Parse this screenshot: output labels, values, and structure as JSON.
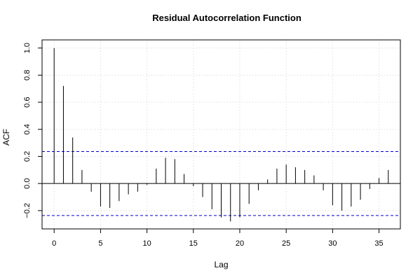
{
  "chart_data": {
    "type": "bar",
    "title": "Residual Autocorrelation Function",
    "xlabel": "Lag",
    "ylabel": "ACF",
    "xlim": [
      -1.3,
      37.3
    ],
    "ylim": [
      -0.335,
      1.06
    ],
    "x_ticks": [
      0,
      5,
      10,
      15,
      20,
      25,
      30,
      35
    ],
    "x_tick_labels": [
      "0",
      "5",
      "10",
      "15",
      "20",
      "25",
      "30",
      "35"
    ],
    "y_ticks": [
      -0.2,
      0.0,
      0.2,
      0.4,
      0.6,
      0.8,
      1.0
    ],
    "y_tick_labels": [
      "−0.2",
      "0.0",
      "0.2",
      "0.4",
      "0.6",
      "0.8",
      "1.0"
    ],
    "grid": true,
    "confidence_bound": 0.236,
    "colors": {
      "spike": "#000000",
      "bound": "#0000cc",
      "grid": "#d3d3d3",
      "zero_line": "#000000"
    },
    "lags": [
      0,
      1,
      2,
      3,
      4,
      5,
      6,
      7,
      8,
      9,
      10,
      11,
      12,
      13,
      14,
      15,
      16,
      17,
      18,
      19,
      20,
      21,
      22,
      23,
      24,
      25,
      26,
      27,
      28,
      29,
      30,
      31,
      32,
      33,
      34,
      35,
      36
    ],
    "values": [
      1.0,
      0.72,
      0.34,
      0.1,
      -0.06,
      -0.17,
      -0.18,
      -0.13,
      -0.08,
      -0.06,
      -0.01,
      0.11,
      0.19,
      0.18,
      0.07,
      -0.02,
      -0.1,
      -0.19,
      -0.25,
      -0.28,
      -0.25,
      -0.15,
      -0.05,
      0.03,
      0.11,
      0.14,
      0.12,
      0.1,
      0.06,
      -0.05,
      -0.16,
      -0.2,
      -0.17,
      -0.12,
      -0.04,
      0.04,
      0.1
    ]
  }
}
